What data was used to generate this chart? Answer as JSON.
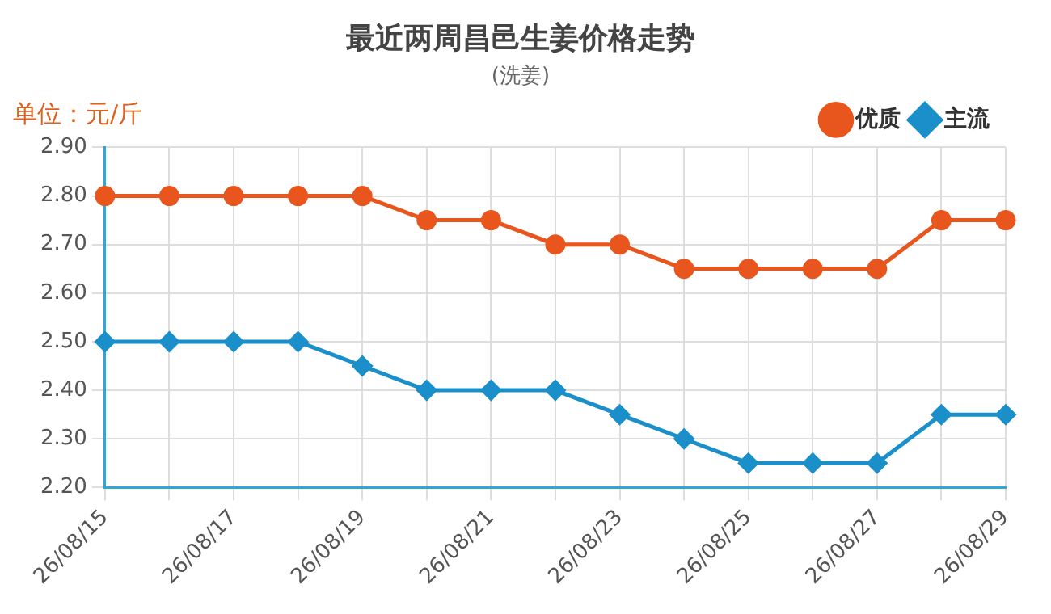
{
  "chart_data": {
    "type": "line",
    "title": "最近两周昌邑生姜价格走势",
    "subtitle": "(洗姜)",
    "ylabel": "单位：元/斤",
    "categories": [
      "26/08/15",
      null,
      "26/08/17",
      null,
      "26/08/19",
      null,
      "26/08/21",
      null,
      "26/08/23",
      null,
      "26/08/25",
      null,
      "26/08/27",
      null,
      "26/08/29"
    ],
    "series": [
      {
        "name": "优质",
        "color": "#e8561e",
        "marker": "circle",
        "values": [
          2.8,
          2.8,
          2.8,
          2.8,
          2.8,
          2.75,
          2.75,
          2.7,
          2.7,
          2.65,
          2.65,
          2.65,
          2.65,
          2.75,
          2.75
        ]
      },
      {
        "name": "主流",
        "color": "#1a8fc9",
        "marker": "diamond",
        "values": [
          2.5,
          2.5,
          2.5,
          2.5,
          2.45,
          2.4,
          2.4,
          2.4,
          2.35,
          2.3,
          2.25,
          2.25,
          2.25,
          2.35,
          2.35
        ]
      }
    ],
    "ylim": [
      2.2,
      2.9
    ],
    "yticks": [
      {
        "value": 2.2,
        "label": "2.20"
      },
      {
        "value": 2.3,
        "label": "2.30"
      },
      {
        "value": 2.4,
        "label": "2.40"
      },
      {
        "value": 2.5,
        "label": "2.50"
      },
      {
        "value": 2.6,
        "label": "2.60"
      },
      {
        "value": 2.7,
        "label": "2.70"
      },
      {
        "value": 2.8,
        "label": "2.80"
      },
      {
        "value": 2.9,
        "label": "2.90"
      }
    ],
    "grid": true,
    "legend": "top right",
    "line_style": "solid"
  }
}
